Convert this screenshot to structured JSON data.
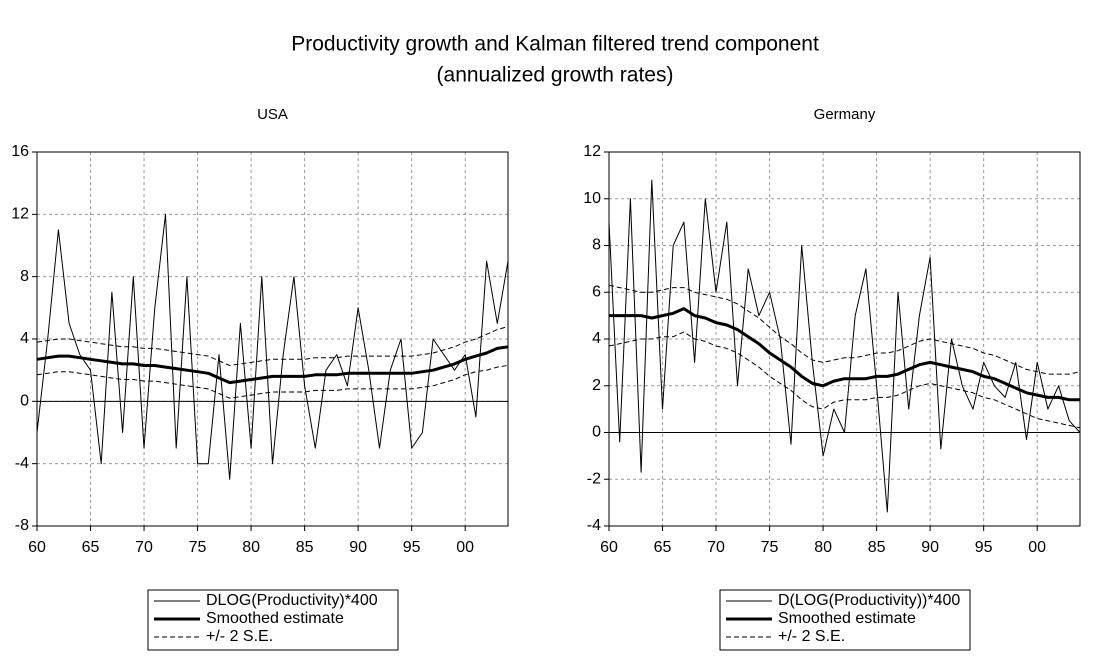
{
  "title": "Productivity growth and Kalman filtered trend component",
  "subtitle": "(annualized growth rates)",
  "chart_data": [
    {
      "type": "line",
      "title": "USA",
      "x": [
        1960,
        1961,
        1962,
        1963,
        1964,
        1965,
        1966,
        1967,
        1968,
        1969,
        1970,
        1971,
        1972,
        1973,
        1974,
        1975,
        1976,
        1977,
        1978,
        1979,
        1980,
        1981,
        1982,
        1983,
        1984,
        1985,
        1986,
        1987,
        1988,
        1989,
        1990,
        1991,
        1992,
        1993,
        1994,
        1995,
        1996,
        1997,
        1998,
        1999,
        2000,
        2001,
        2002,
        2003,
        2004
      ],
      "xlim": [
        1960,
        2004
      ],
      "xticks": [
        {
          "value": 1960,
          "label": "60"
        },
        {
          "value": 1965,
          "label": "65"
        },
        {
          "value": 1970,
          "label": "70"
        },
        {
          "value": 1975,
          "label": "75"
        },
        {
          "value": 1980,
          "label": "80"
        },
        {
          "value": 1985,
          "label": "85"
        },
        {
          "value": 1990,
          "label": "90"
        },
        {
          "value": 1995,
          "label": "95"
        },
        {
          "value": 2000,
          "label": "00"
        }
      ],
      "ylim": [
        -8,
        16
      ],
      "yticks": [
        -8,
        -4,
        0,
        4,
        8,
        12,
        16
      ],
      "grid": true,
      "series": [
        {
          "name": "DLOG(Productivity)*400",
          "color": "#000000",
          "line_style": "thin",
          "values": [
            -2,
            4,
            11,
            5,
            3,
            2,
            -4,
            7,
            -2,
            8,
            -3,
            6,
            12,
            -3,
            8,
            -4,
            -4,
            3,
            -5,
            5,
            -3,
            8,
            -4,
            3,
            8,
            1,
            -3,
            2,
            3,
            1,
            6,
            2,
            -3,
            2,
            4,
            -3,
            -2,
            4,
            3,
            2,
            3,
            -1,
            9,
            5,
            9
          ]
        },
        {
          "name": "Smoothed estimate",
          "color": "#000000",
          "line_style": "thick",
          "values": [
            2.7,
            2.8,
            2.9,
            2.9,
            2.8,
            2.7,
            2.6,
            2.5,
            2.4,
            2.4,
            2.3,
            2.3,
            2.2,
            2.1,
            2.0,
            1.9,
            1.8,
            1.5,
            1.2,
            1.3,
            1.4,
            1.5,
            1.6,
            1.6,
            1.6,
            1.6,
            1.7,
            1.7,
            1.7,
            1.8,
            1.8,
            1.8,
            1.8,
            1.8,
            1.8,
            1.8,
            1.9,
            2.0,
            2.2,
            2.4,
            2.7,
            2.9,
            3.1,
            3.4,
            3.5
          ]
        },
        {
          "name": "+/- 2 S.E.",
          "color": "#000000",
          "line_style": "dashed",
          "upper": [
            3.8,
            3.9,
            4.0,
            4.0,
            3.9,
            3.8,
            3.7,
            3.6,
            3.5,
            3.5,
            3.4,
            3.4,
            3.3,
            3.2,
            3.1,
            3.0,
            2.9,
            2.6,
            2.3,
            2.4,
            2.5,
            2.6,
            2.7,
            2.7,
            2.7,
            2.7,
            2.8,
            2.8,
            2.8,
            2.9,
            2.9,
            2.9,
            2.9,
            2.9,
            2.9,
            2.9,
            3.0,
            3.1,
            3.3,
            3.5,
            3.8,
            4.0,
            4.3,
            4.6,
            4.8
          ],
          "lower": [
            1.7,
            1.8,
            1.9,
            1.9,
            1.8,
            1.7,
            1.6,
            1.5,
            1.4,
            1.4,
            1.3,
            1.3,
            1.2,
            1.1,
            1.0,
            0.9,
            0.8,
            0.5,
            0.2,
            0.3,
            0.4,
            0.5,
            0.6,
            0.6,
            0.6,
            0.6,
            0.7,
            0.7,
            0.7,
            0.8,
            0.8,
            0.8,
            0.8,
            0.8,
            0.8,
            0.8,
            0.9,
            1.0,
            1.2,
            1.4,
            1.7,
            1.9,
            2.0,
            2.2,
            2.3
          ]
        }
      ]
    },
    {
      "type": "line",
      "title": "Germany",
      "x": [
        1960,
        1961,
        1962,
        1963,
        1964,
        1965,
        1966,
        1967,
        1968,
        1969,
        1970,
        1971,
        1972,
        1973,
        1974,
        1975,
        1976,
        1977,
        1978,
        1979,
        1980,
        1981,
        1982,
        1983,
        1984,
        1985,
        1986,
        1987,
        1988,
        1989,
        1990,
        1991,
        1992,
        1993,
        1994,
        1995,
        1996,
        1997,
        1998,
        1999,
        2000,
        2001,
        2002,
        2003,
        2004
      ],
      "xlim": [
        1960,
        2004
      ],
      "xticks": [
        {
          "value": 1960,
          "label": "60"
        },
        {
          "value": 1965,
          "label": "65"
        },
        {
          "value": 1970,
          "label": "70"
        },
        {
          "value": 1975,
          "label": "75"
        },
        {
          "value": 1980,
          "label": "80"
        },
        {
          "value": 1985,
          "label": "85"
        },
        {
          "value": 1990,
          "label": "90"
        },
        {
          "value": 1995,
          "label": "95"
        },
        {
          "value": 2000,
          "label": "00"
        }
      ],
      "ylim": [
        -4,
        12
      ],
      "yticks": [
        -4,
        -2,
        0,
        2,
        4,
        6,
        8,
        10,
        12
      ],
      "grid": true,
      "series": [
        {
          "name": "D(LOG(Productivity))*400",
          "color": "#000000",
          "line_style": "thin",
          "values": [
            9,
            -0.4,
            10,
            -1.7,
            10.8,
            1,
            8,
            9,
            3,
            10,
            6,
            9,
            2,
            7,
            5,
            6,
            4,
            -0.5,
            8,
            3,
            -1,
            1,
            0,
            5,
            7,
            2,
            -3.4,
            6,
            1,
            5,
            7.5,
            -0.7,
            4,
            2,
            1,
            3,
            2,
            1.5,
            3,
            -0.3,
            3,
            1,
            2,
            0.5,
            0
          ]
        },
        {
          "name": "Smoothed estimate",
          "color": "#000000",
          "line_style": "thick",
          "values": [
            5.0,
            5.0,
            5.0,
            5.0,
            4.9,
            5.0,
            5.1,
            5.3,
            5.0,
            4.9,
            4.7,
            4.6,
            4.4,
            4.1,
            3.8,
            3.4,
            3.1,
            2.8,
            2.4,
            2.1,
            2.0,
            2.2,
            2.3,
            2.3,
            2.3,
            2.4,
            2.4,
            2.5,
            2.7,
            2.9,
            3.0,
            2.9,
            2.8,
            2.7,
            2.6,
            2.4,
            2.3,
            2.1,
            1.9,
            1.7,
            1.6,
            1.5,
            1.5,
            1.4,
            1.4
          ]
        },
        {
          "name": "+/- 2 S.E.",
          "color": "#000000",
          "line_style": "dashed",
          "upper": [
            6.3,
            6.2,
            6.1,
            6.0,
            6.0,
            6.1,
            6.2,
            6.2,
            6.0,
            5.9,
            5.8,
            5.7,
            5.5,
            5.2,
            4.9,
            4.5,
            4.1,
            3.8,
            3.4,
            3.1,
            3.0,
            3.1,
            3.2,
            3.2,
            3.3,
            3.4,
            3.4,
            3.5,
            3.7,
            3.9,
            4.0,
            3.9,
            3.8,
            3.7,
            3.6,
            3.4,
            3.3,
            3.1,
            2.9,
            2.7,
            2.6,
            2.5,
            2.5,
            2.5,
            2.6
          ],
          "lower": [
            3.7,
            3.8,
            3.9,
            4.0,
            4.0,
            4.1,
            4.1,
            4.3,
            4.0,
            3.9,
            3.7,
            3.6,
            3.4,
            3.1,
            2.8,
            2.4,
            2.1,
            1.8,
            1.4,
            1.1,
            1.0,
            1.3,
            1.4,
            1.4,
            1.4,
            1.5,
            1.5,
            1.6,
            1.8,
            2.0,
            2.1,
            2.0,
            1.9,
            1.8,
            1.7,
            1.5,
            1.4,
            1.2,
            1.0,
            0.8,
            0.6,
            0.5,
            0.4,
            0.3,
            0.2
          ]
        }
      ]
    }
  ]
}
